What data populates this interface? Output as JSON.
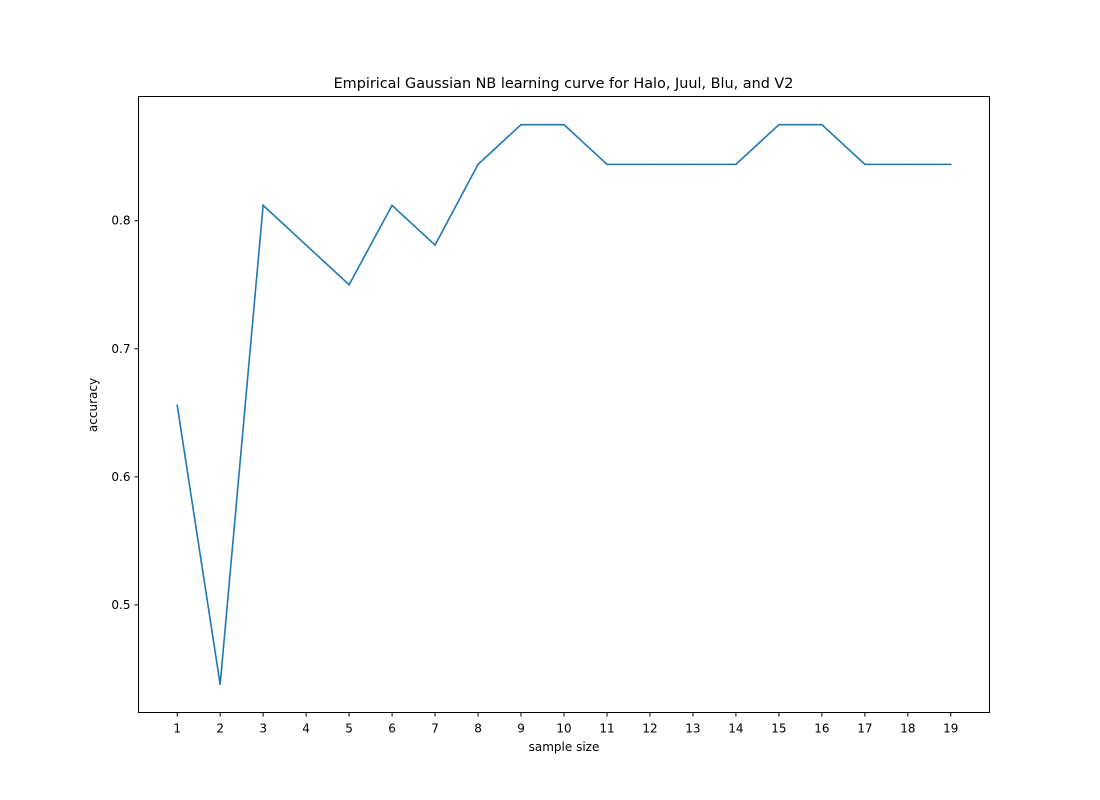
{
  "chart_data": {
    "type": "line",
    "title": "Empirical Gaussian NB learning curve for Halo, Juul, Blu, and V2",
    "xlabel": "sample size",
    "ylabel": "accuracy",
    "x": [
      1,
      2,
      3,
      4,
      5,
      6,
      7,
      8,
      9,
      10,
      11,
      12,
      13,
      14,
      15,
      16,
      17,
      18,
      19
    ],
    "xticks": [
      "1",
      "2",
      "3",
      "4",
      "5",
      "6",
      "7",
      "8",
      "9",
      "10",
      "11",
      "12",
      "13",
      "14",
      "15",
      "16",
      "17",
      "18",
      "19"
    ],
    "yticks": [
      0.5,
      0.6,
      0.7,
      0.8
    ],
    "ytick_labels": [
      "0.5",
      "0.6",
      "0.7",
      "0.8"
    ],
    "xlim": [
      0.1,
      19.9
    ],
    "ylim": [
      0.416,
      0.897
    ],
    "grid": false,
    "series": [
      {
        "color": "#1f77b4",
        "values": [
          0.656,
          0.438,
          0.812,
          0.781,
          0.75,
          0.812,
          0.781,
          0.844,
          0.875,
          0.875,
          0.844,
          0.844,
          0.844,
          0.844,
          0.875,
          0.875,
          0.844,
          0.844,
          0.844
        ]
      }
    ]
  }
}
